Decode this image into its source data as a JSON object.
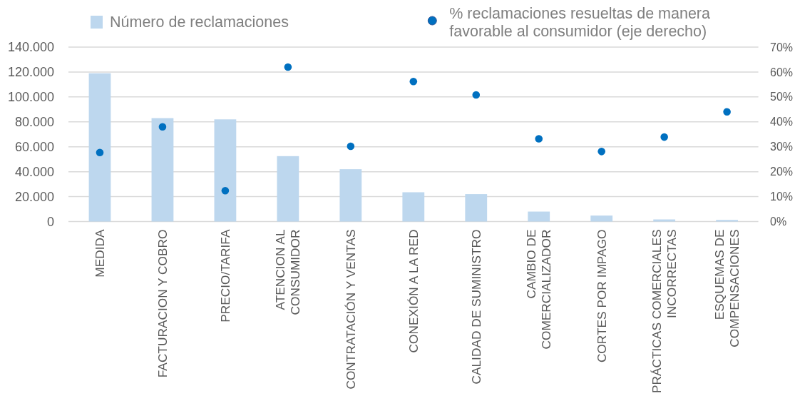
{
  "chart_data": {
    "type": "bar",
    "categories": [
      "MEDIDA",
      "FACTURACION Y COBRO",
      "PRECIO/TARIFA",
      "ATENCION AL CONSUMIDOR",
      "CONTRATACIÓN Y VENTAS",
      "CONEXIÓN A LA RED",
      "CALIDAD DE SUMINISTRO",
      "CAMBIO DE COMERCIALIZADOR",
      "CORTES POR IMPAGO",
      "PRÁCTICAS COMERCIALES INCORRECTAS",
      "ESQUEMAS DE COMPENSACIONES"
    ],
    "series": [
      {
        "name": "Número de reclamaciones",
        "color": "#bdd7ee",
        "values": [
          119000,
          83000,
          82000,
          52500,
          42000,
          23500,
          22000,
          8000,
          4800,
          1700,
          1300
        ]
      },
      {
        "name": "% reclamaciones resueltas de manera favorable al consumidor (eje derecho)",
        "type": "scatter",
        "axis": "y2",
        "color": "#0070c0",
        "values": [
          27.7,
          38.0,
          12.4,
          62.0,
          30.2,
          56.2,
          50.8,
          33.2,
          28.1,
          33.9,
          44.0
        ]
      }
    ],
    "ylim": [
      0,
      140000
    ],
    "yticks": [
      {
        "value": 0,
        "label": "0"
      },
      {
        "value": 20000,
        "label": "20.000"
      },
      {
        "value": 40000,
        "label": "40.000"
      },
      {
        "value": 60000,
        "label": "60.000"
      },
      {
        "value": 80000,
        "label": "80.000"
      },
      {
        "value": 100000,
        "label": "100.000"
      },
      {
        "value": 120000,
        "label": "120.000"
      },
      {
        "value": 140000,
        "label": "140.000"
      }
    ],
    "y2lim": [
      0,
      70
    ],
    "y2ticks": [
      {
        "value": 0,
        "label": "0%"
      },
      {
        "value": 10,
        "label": "10%"
      },
      {
        "value": 20,
        "label": "20%"
      },
      {
        "value": 30,
        "label": "30%"
      },
      {
        "value": 40,
        "label": "40%"
      },
      {
        "value": 50,
        "label": "50%"
      },
      {
        "value": 60,
        "label": "60%"
      },
      {
        "value": 70,
        "label": "70%"
      }
    ],
    "grid": "y",
    "legend": "top",
    "marker": "circle"
  }
}
